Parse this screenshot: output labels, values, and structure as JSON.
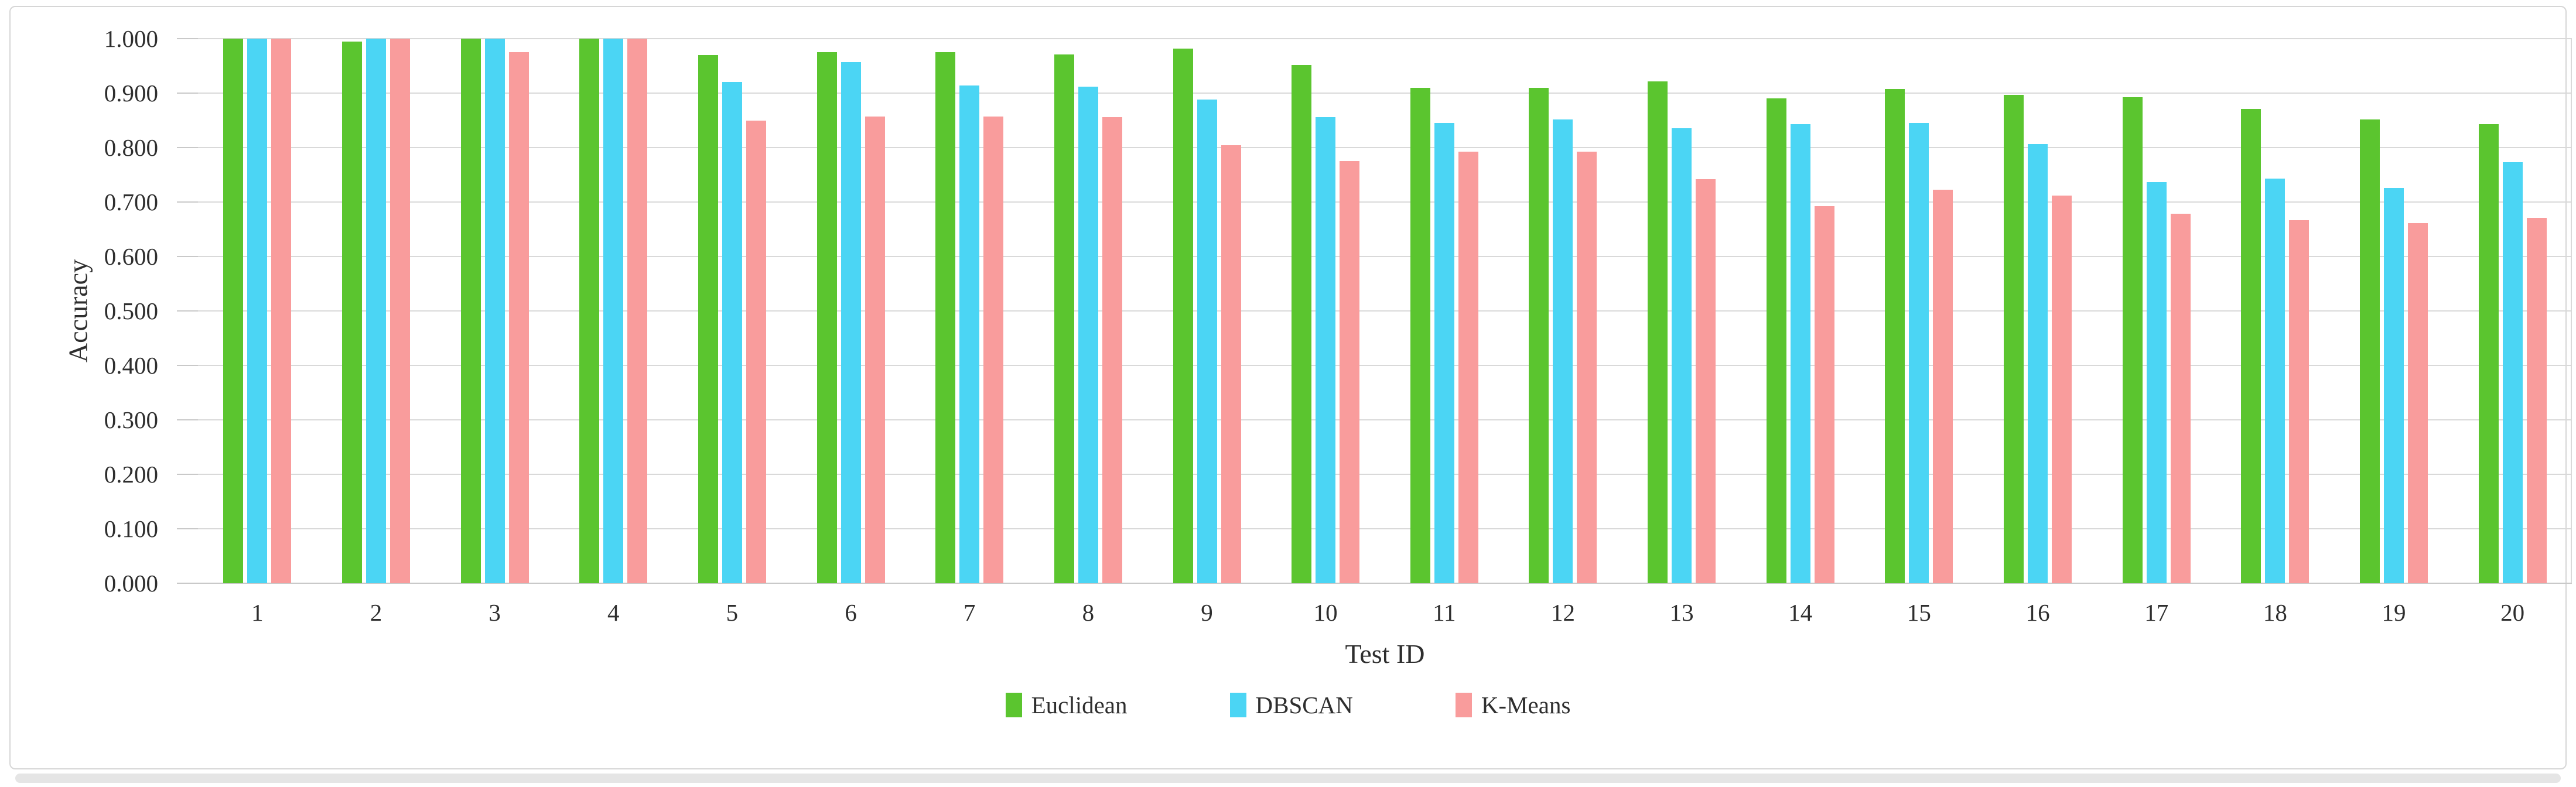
{
  "figure": {
    "background": "#FFFFFF",
    "border_color": "#D6D6D6",
    "scrollbar_color": "#E5E5E5"
  },
  "chart_data": {
    "type": "bar",
    "title": "",
    "xlabel": "Test ID",
    "ylabel": "Accuracy",
    "ylim": [
      0,
      1
    ],
    "ytick_step": 0.1,
    "yticks": [
      "1.000",
      "0.900",
      "0.800",
      "0.700",
      "0.600",
      "0.500",
      "0.400",
      "0.300",
      "0.200",
      "0.100",
      "0.000"
    ],
    "grid": "horizontal",
    "legend_position": "bottom-center",
    "categories": [
      "1",
      "2",
      "3",
      "4",
      "5",
      "6",
      "7",
      "8",
      "9",
      "10",
      "11",
      "12",
      "13",
      "14",
      "15",
      "16",
      "17",
      "18",
      "19",
      "20"
    ],
    "series": [
      {
        "name": "Euclidean",
        "color": "#5BC52F",
        "values": [
          1.0,
          0.995,
          1.0,
          1.0,
          0.97,
          0.975,
          0.975,
          0.971,
          0.982,
          0.952,
          0.91,
          0.91,
          0.921,
          0.89,
          0.908,
          0.897,
          0.892,
          0.871,
          0.852,
          0.843
        ]
      },
      {
        "name": "DBSCAN",
        "color": "#4BD5F4",
        "values": [
          1.0,
          1.0,
          1.0,
          1.0,
          0.92,
          0.957,
          0.914,
          0.912,
          0.888,
          0.856,
          0.845,
          0.852,
          0.836,
          0.843,
          0.845,
          0.806,
          0.737,
          0.743,
          0.726,
          0.773
        ]
      },
      {
        "name": "K-Means",
        "color": "#F99C9C",
        "values": [
          1.0,
          1.0,
          0.975,
          1.0,
          0.85,
          0.857,
          0.857,
          0.856,
          0.804,
          0.775,
          0.793,
          0.793,
          0.742,
          0.692,
          0.723,
          0.712,
          0.679,
          0.667,
          0.661,
          0.671
        ]
      }
    ],
    "colors": {
      "gridline": "#D9D9D9",
      "axis_line": "#C9C9C9",
      "tick": "#C9C9C9",
      "text": "#2E2E2E"
    }
  }
}
